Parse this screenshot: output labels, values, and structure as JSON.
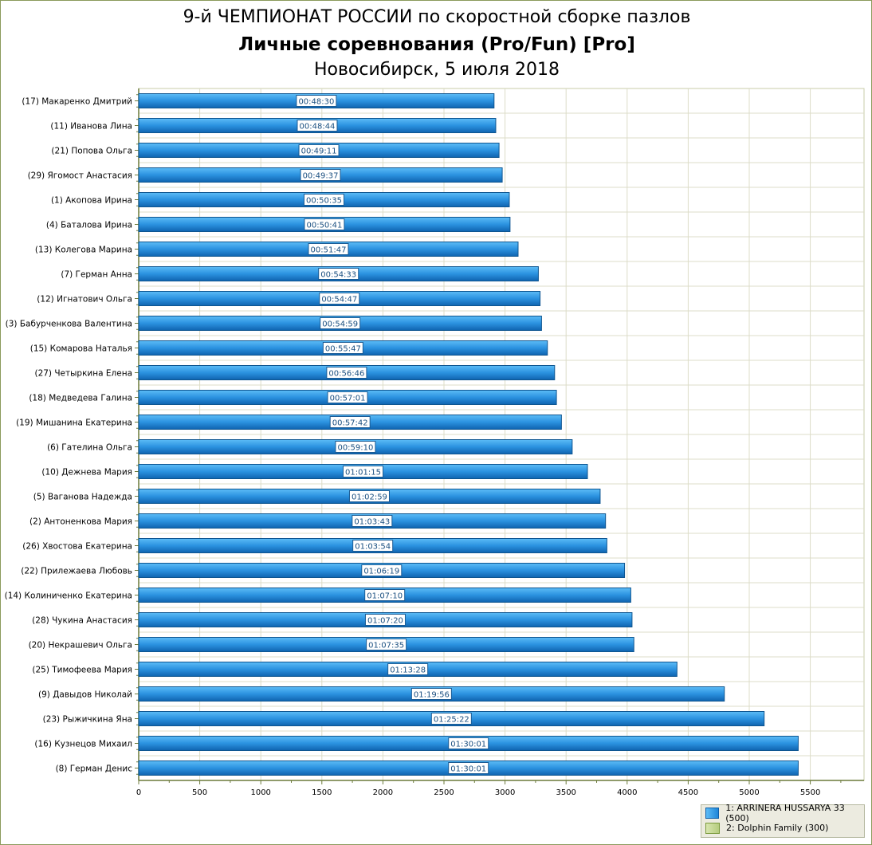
{
  "chart_data": {
    "type": "bar",
    "orientation": "horizontal",
    "title": "9-й ЧЕМПИОНАТ РОССИИ по скоростной сборке пазлов",
    "subtitle": "Личные соревнования (Pro/Fun) [Pro]",
    "subtitle2": "Новосибирск, 5 июля 2018",
    "xlabel": "",
    "ylabel": "",
    "xlim": [
      0,
      5940
    ],
    "xticks": [
      0,
      500,
      1000,
      1500,
      2000,
      2500,
      3000,
      3500,
      4000,
      4500,
      5000,
      5500
    ],
    "grid": true,
    "categories": [
      "(17) Макаренко Дмитрий",
      "(11) Иванова Лина",
      "(21) Попова Ольга",
      "(29) Ягомост Анастасия",
      "(1) Акопова Ирина",
      "(4) Баталова Ирина",
      "(13) Колегова Марина",
      "(7) Герман Анна",
      "(12) Игнатович Ольга",
      "(3) Бабурченкова Валентина",
      "(15) Комарова Наталья",
      "(27) Четыркина Елена",
      "(18) Медведева Галина",
      "(19) Мишанина Екатерина",
      "(6) Гателина Ольга",
      "(10) Дежнева Мария",
      "(5) Ваганова Надежда",
      "(2) Антоненкова Мария",
      "(26) Хвостова Екатерина",
      "(22) Прилежаева Любовь",
      "(14) Колиниченко Екатерина",
      "(28) Чукина Анастасия",
      "(20) Некрашевич Ольга",
      "(25) Тимофеева Мария",
      "(9) Давыдов Николай",
      "(23) Рыжичкина Яна",
      "(16) Кузнецов Михаил",
      "(8) Герман Денис"
    ],
    "labels": [
      "00:48:30",
      "00:48:44",
      "00:49:11",
      "00:49:37",
      "00:50:35",
      "00:50:41",
      "00:51:47",
      "00:54:33",
      "00:54:47",
      "00:54:59",
      "00:55:47",
      "00:56:46",
      "00:57:01",
      "00:57:42",
      "00:59:10",
      "01:01:15",
      "01:02:59",
      "01:03:43",
      "01:03:54",
      "01:06:19",
      "01:07:10",
      "01:07:20",
      "01:07:35",
      "01:13:28",
      "01:19:56",
      "01:25:22",
      "01:30:01",
      "01:30:01"
    ],
    "values": [
      2910,
      2924,
      2951,
      2977,
      3035,
      3041,
      3107,
      3273,
      3287,
      3299,
      3347,
      3406,
      3421,
      3462,
      3550,
      3675,
      3779,
      3823,
      3834,
      3979,
      4030,
      4040,
      4055,
      4408,
      4796,
      5122,
      5401,
      5401
    ],
    "legend": {
      "placement": "bottom-right",
      "entries": [
        {
          "name": "1: ARRINERA HUSSARYA 33 (500)",
          "color": "#1f86d8"
        },
        {
          "name": "2: Dolphin Family (300)",
          "color": "#b5cc7e"
        }
      ]
    }
  }
}
